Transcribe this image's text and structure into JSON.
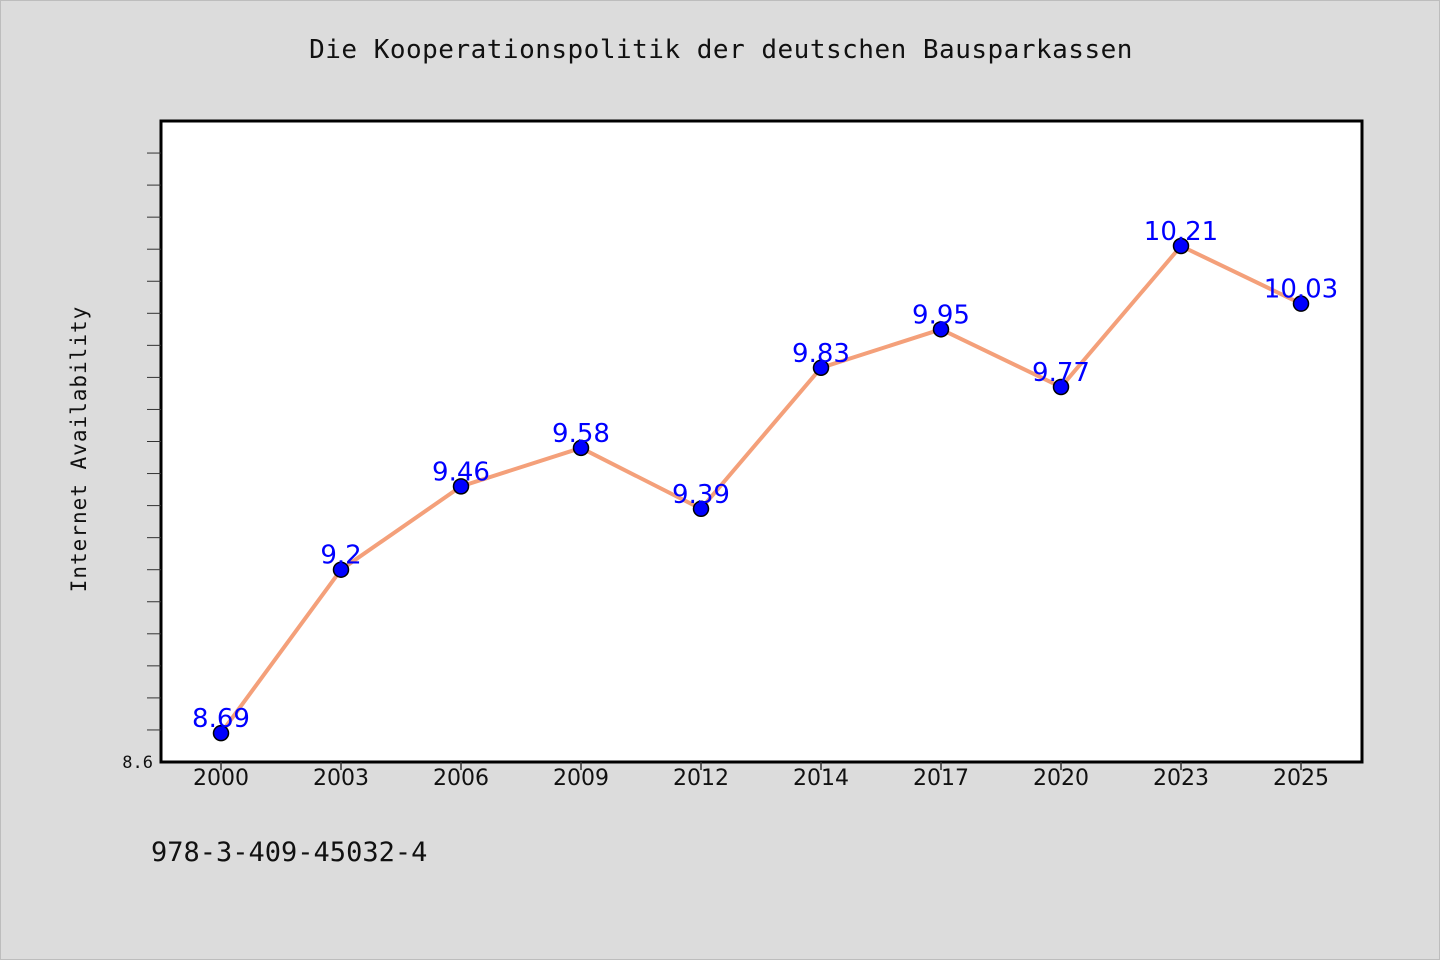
{
  "page": {
    "footer_code": "978-3-409-45032-4"
  },
  "colors": {
    "background": "#dcdcdc",
    "plot_background": "#ffffff",
    "line": "#f4a07a",
    "marker": "#0000ff",
    "data_label": "#0000ff",
    "axis": "#000000"
  },
  "chart_data": {
    "type": "line",
    "title": "Die Kooperationspolitik der deutschen Bausparkassen",
    "xlabel": "",
    "ylabel": "Internet Availability",
    "categories": [
      "2000",
      "2003",
      "2006",
      "2009",
      "2012",
      "2014",
      "2017",
      "2020",
      "2023",
      "2025"
    ],
    "series": [
      {
        "values": [
          8.69,
          9.2,
          9.46,
          9.58,
          9.39,
          9.83,
          9.95,
          9.77,
          10.21,
          10.03
        ]
      }
    ],
    "data_labels": [
      "8.69",
      "9.2",
      "9.46",
      "9.58",
      "9.39",
      "9.83",
      "9.95",
      "9.77",
      "10.21",
      "10.03"
    ],
    "ylim": [
      8.6,
      10.6
    ],
    "y_tick_labels": [
      "8.6"
    ],
    "grid": false,
    "legend": "none"
  }
}
